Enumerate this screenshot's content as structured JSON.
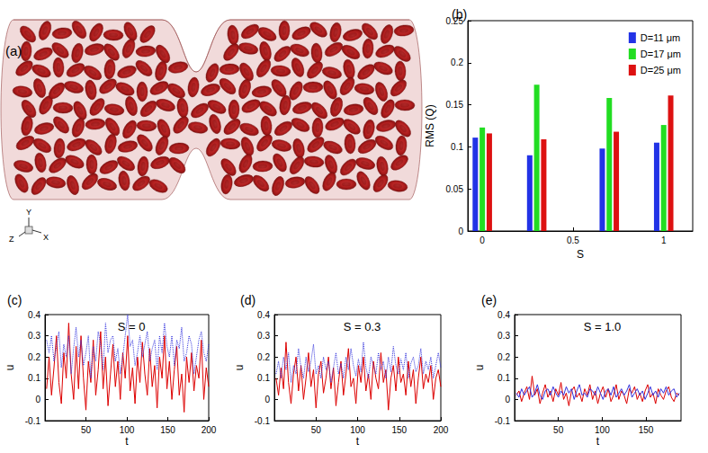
{
  "chart_data": [
    {
      "type": "illustration",
      "panel": "(a)",
      "axis_labels": [
        "Y",
        "Z",
        "X"
      ]
    },
    {
      "type": "bar",
      "panel": "(b)",
      "xlabel": "S",
      "ylabel": "RMS (Q)",
      "x": [
        0,
        0.3,
        0.7,
        1
      ],
      "xlim": [
        -0.08,
        1.16
      ],
      "xticks": [
        0,
        0.5,
        1
      ],
      "ylim": [
        0,
        0.25
      ],
      "yticks": [
        0,
        0.05,
        0.1,
        0.15,
        0.2,
        0.25
      ],
      "grid": false,
      "legend": "upper right",
      "series": [
        {
          "name": "D=11 μm",
          "color": "#2233e6",
          "values": [
            0.111,
            0.09,
            0.098,
            0.105
          ]
        },
        {
          "name": "D=17 μm",
          "color": "#22dd22",
          "values": [
            0.123,
            0.174,
            0.158,
            0.126
          ]
        },
        {
          "name": "D=25 μm",
          "color": "#dd1111",
          "values": [
            0.116,
            0.109,
            0.118,
            0.161
          ]
        }
      ]
    },
    {
      "type": "line",
      "panel": "(c)",
      "title": "S = 0",
      "xlabel": "t",
      "ylabel": "u",
      "xlim": [
        0,
        200
      ],
      "xticks": [
        50,
        100,
        150,
        200
      ],
      "ylim": [
        -0.1,
        0.4
      ],
      "yticks": [
        -0.1,
        0,
        0.1,
        0.2,
        0.3,
        0.4
      ],
      "grid": false,
      "x": [
        2,
        5,
        8,
        11,
        14,
        17,
        20,
        23,
        26,
        29,
        32,
        35,
        38,
        41,
        44,
        47,
        50,
        53,
        56,
        59,
        62,
        65,
        68,
        71,
        74,
        77,
        80,
        83,
        86,
        89,
        92,
        95,
        98,
        101,
        104,
        107,
        110,
        113,
        116,
        119,
        122,
        125,
        128,
        131,
        134,
        137,
        140,
        143,
        146,
        149,
        152,
        155,
        158,
        161,
        164,
        167,
        170,
        173,
        176,
        179,
        182,
        185,
        188,
        191,
        194,
        197,
        200
      ],
      "series": [
        {
          "color": "#dd0000",
          "line_style": "solid",
          "values": [
            0.05,
            0.2,
            0.02,
            0.15,
            0.3,
            0.08,
            -0.02,
            0.22,
            0.1,
            0.36,
            0.12,
            0.0,
            0.25,
            0.05,
            0.3,
            0.1,
            -0.05,
            0.18,
            0.08,
            0.28,
            0.02,
            0.14,
            0.32,
            0.05,
            0.2,
            -0.03,
            0.12,
            0.26,
            0.06,
            0.18,
            0.0,
            0.22,
            0.1,
            0.3,
            0.04,
            0.15,
            -0.02,
            0.2,
            0.08,
            0.27,
            0.12,
            0.02,
            0.24,
            0.06,
            0.16,
            -0.04,
            0.2,
            0.1,
            0.3,
            0.05,
            0.18,
            0.0,
            0.14,
            0.25,
            0.02,
            0.12,
            -0.06,
            0.2,
            0.08,
            0.22,
            0.04,
            0.16,
            0.1,
            0.28,
            0.0,
            0.15,
            0.06
          ]
        },
        {
          "color": "#3333dd",
          "line_style": "dotted",
          "values": [
            0.28,
            0.22,
            0.3,
            0.18,
            0.25,
            0.32,
            0.15,
            0.26,
            0.2,
            0.3,
            0.12,
            0.24,
            0.34,
            0.2,
            0.28,
            0.16,
            0.22,
            0.3,
            0.1,
            0.25,
            0.18,
            0.32,
            0.26,
            0.14,
            0.36,
            0.22,
            0.28,
            0.3,
            0.18,
            0.24,
            0.12,
            0.2,
            0.3,
            0.4,
            0.25,
            0.28,
            0.16,
            0.22,
            0.3,
            0.2,
            0.26,
            0.32,
            0.18,
            0.24,
            0.28,
            0.14,
            0.3,
            0.22,
            0.36,
            0.25,
            0.2,
            0.3,
            0.16,
            0.28,
            0.24,
            0.34,
            0.18,
            0.22,
            0.3,
            0.26,
            0.12,
            0.2,
            0.28,
            0.32,
            0.22,
            0.18,
            0.26
          ]
        }
      ]
    },
    {
      "type": "line",
      "panel": "(d)",
      "title": "S = 0.3",
      "xlabel": "t",
      "ylabel": "u",
      "xlim": [
        0,
        200
      ],
      "xticks": [
        50,
        100,
        150,
        200
      ],
      "ylim": [
        -0.1,
        0.4
      ],
      "yticks": [
        -0.1,
        0,
        0.1,
        0.2,
        0.3,
        0.4
      ],
      "grid": false,
      "x": [
        2,
        5,
        8,
        11,
        14,
        17,
        20,
        23,
        26,
        29,
        32,
        35,
        38,
        41,
        44,
        47,
        50,
        53,
        56,
        59,
        62,
        65,
        68,
        71,
        74,
        77,
        80,
        83,
        86,
        89,
        92,
        95,
        98,
        101,
        104,
        107,
        110,
        113,
        116,
        119,
        122,
        125,
        128,
        131,
        134,
        137,
        140,
        143,
        146,
        149,
        152,
        155,
        158,
        161,
        164,
        167,
        170,
        173,
        176,
        179,
        182,
        185,
        188,
        191,
        194,
        197,
        200
      ],
      "series": [
        {
          "color": "#dd0000",
          "line_style": "solid",
          "values": [
            0.1,
            0.02,
            0.15,
            0.05,
            0.27,
            0.08,
            -0.02,
            0.12,
            0.2,
            0.04,
            0.16,
            0.0,
            0.1,
            0.22,
            0.06,
            0.14,
            -0.04,
            0.12,
            0.18,
            0.03,
            0.1,
            0.2,
            0.05,
            0.15,
            -0.03,
            0.08,
            0.18,
            0.02,
            0.12,
            0.24,
            0.06,
            0.1,
            -0.02,
            0.16,
            0.08,
            0.2,
            0.04,
            0.12,
            0.0,
            0.18,
            0.1,
            0.05,
            0.22,
            0.08,
            0.14,
            -0.05,
            0.1,
            0.16,
            0.04,
            0.2,
            0.08,
            0.12,
            0.02,
            0.18,
            0.06,
            0.14,
            -0.02,
            0.1,
            0.2,
            0.05,
            0.12,
            0.08,
            0.16,
            0.0,
            0.1,
            0.14,
            0.06
          ]
        },
        {
          "color": "#3333dd",
          "line_style": "dotted",
          "values": [
            0.12,
            0.18,
            0.1,
            0.2,
            0.14,
            0.22,
            0.08,
            0.16,
            0.12,
            0.24,
            0.15,
            0.1,
            0.2,
            0.13,
            0.18,
            0.26,
            0.12,
            0.16,
            0.1,
            0.2,
            0.14,
            0.18,
            0.08,
            0.15,
            0.22,
            0.12,
            0.17,
            0.1,
            0.2,
            0.14,
            0.24,
            0.16,
            0.11,
            0.19,
            0.13,
            0.27,
            0.15,
            0.1,
            0.2,
            0.16,
            0.12,
            0.22,
            0.14,
            0.18,
            0.1,
            0.2,
            0.13,
            0.25,
            0.16,
            0.12,
            0.19,
            0.14,
            0.22,
            0.1,
            0.17,
            0.2,
            0.13,
            0.16,
            0.24,
            0.12,
            0.18,
            0.14,
            0.2,
            0.1,
            0.16,
            0.22,
            0.15
          ]
        }
      ]
    },
    {
      "type": "line",
      "panel": "(e)",
      "title": "S = 1.0",
      "xlabel": "t",
      "ylabel": "u",
      "xlim": [
        0,
        190
      ],
      "xticks": [
        50,
        100,
        150
      ],
      "ylim": [
        -0.1,
        0.4
      ],
      "yticks": [
        -0.1,
        0,
        0.1,
        0.2,
        0.3,
        0.4
      ],
      "grid": false,
      "x": [
        2,
        5,
        8,
        11,
        14,
        17,
        20,
        23,
        26,
        29,
        32,
        35,
        38,
        41,
        44,
        47,
        50,
        53,
        56,
        59,
        62,
        65,
        68,
        71,
        74,
        77,
        80,
        83,
        86,
        89,
        92,
        95,
        98,
        101,
        104,
        107,
        110,
        113,
        116,
        119,
        122,
        125,
        128,
        131,
        134,
        137,
        140,
        143,
        146,
        149,
        152,
        155,
        158,
        161,
        164,
        167,
        170,
        173,
        176,
        179,
        182,
        185,
        188
      ],
      "series": [
        {
          "color": "#dd0000",
          "line_style": "solid",
          "values": [
            0.02,
            0.04,
            -0.01,
            0.03,
            0.06,
            0.0,
            0.11,
            0.02,
            0.05,
            -0.02,
            0.03,
            0.07,
            0.01,
            0.04,
            -0.01,
            0.05,
            0.02,
            0.08,
            0.0,
            0.03,
            -0.03,
            0.04,
            0.06,
            0.01,
            0.03,
            -0.01,
            0.05,
            0.02,
            0.07,
            0.0,
            0.04,
            -0.02,
            0.03,
            0.06,
            0.01,
            0.05,
            -0.01,
            0.02,
            0.07,
            0.0,
            0.04,
            0.02,
            -0.02,
            0.05,
            0.03,
            0.06,
            0.0,
            0.03,
            -0.01,
            0.04,
            0.07,
            0.01,
            0.03,
            -0.02,
            0.05,
            0.02,
            0.0,
            0.04,
            0.06,
            0.01,
            -0.01,
            0.03,
            0.02
          ]
        },
        {
          "color": "#3333dd",
          "line_style": "solid",
          "values": [
            0.03,
            0.01,
            0.05,
            0.02,
            0.04,
            0.06,
            0.01,
            0.03,
            0.07,
            0.02,
            0.0,
            0.04,
            0.05,
            0.02,
            0.06,
            0.03,
            0.01,
            0.04,
            0.02,
            0.06,
            0.03,
            0.05,
            0.0,
            0.04,
            0.07,
            0.02,
            0.03,
            0.01,
            0.05,
            0.04,
            0.02,
            0.06,
            0.03,
            0.0,
            0.04,
            0.05,
            0.02,
            0.06,
            0.01,
            0.03,
            0.05,
            0.02,
            0.04,
            0.07,
            0.01,
            0.03,
            0.05,
            0.02,
            0.04,
            0.0,
            0.03,
            0.06,
            0.02,
            0.04,
            0.01,
            0.05,
            0.03,
            0.06,
            0.02,
            0.04,
            0.05,
            0.01,
            0.03
          ]
        }
      ]
    }
  ]
}
